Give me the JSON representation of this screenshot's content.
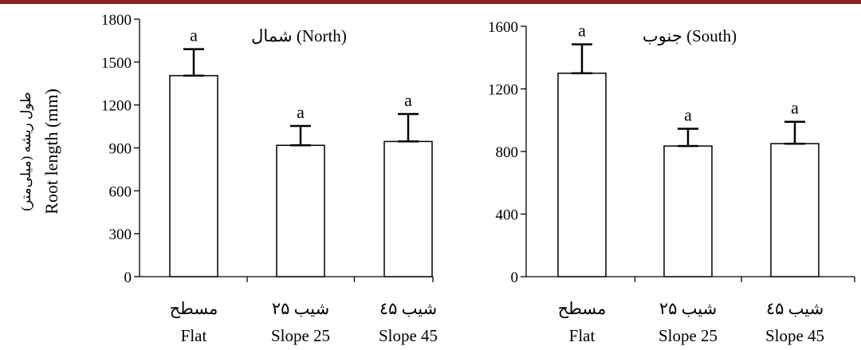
{
  "colors": {
    "top_rule": "#8b1e1e",
    "bar_fill": "#ffffff",
    "stroke": "#000000"
  },
  "y_axis": {
    "label_en": "Root length (mm)",
    "label_fa": "طول ریشه (میلی‌متر)"
  },
  "chart_data": [
    {
      "type": "bar",
      "title": "(North) شمال",
      "categories": [
        "Flat",
        "Slope 25",
        "Slope 45"
      ],
      "categories_fa": [
        "مسطح",
        "شیب ۲۵",
        "شیب ٤۵"
      ],
      "values": [
        1405,
        918,
        945
      ],
      "error": [
        185,
        135,
        192
      ],
      "significance": [
        "a",
        "a",
        "a"
      ],
      "ylim": [
        0,
        1800
      ],
      "yticks": [
        0,
        300,
        600,
        900,
        1200,
        1500,
        1800
      ],
      "ylabel": "Root length (mm)"
    },
    {
      "type": "bar",
      "title": "(South) جنوب",
      "categories": [
        "Flat",
        "Slope 25",
        "Slope 45"
      ],
      "categories_fa": [
        "مسطح",
        "شیب ۲۵",
        "شیب ٤۵"
      ],
      "values": [
        1300,
        835,
        850
      ],
      "error": [
        185,
        110,
        140
      ],
      "significance": [
        "a",
        "a",
        "a"
      ],
      "ylim": [
        0,
        1600
      ],
      "yticks": [
        0,
        400,
        800,
        1200,
        1600
      ],
      "ylabel": ""
    }
  ]
}
